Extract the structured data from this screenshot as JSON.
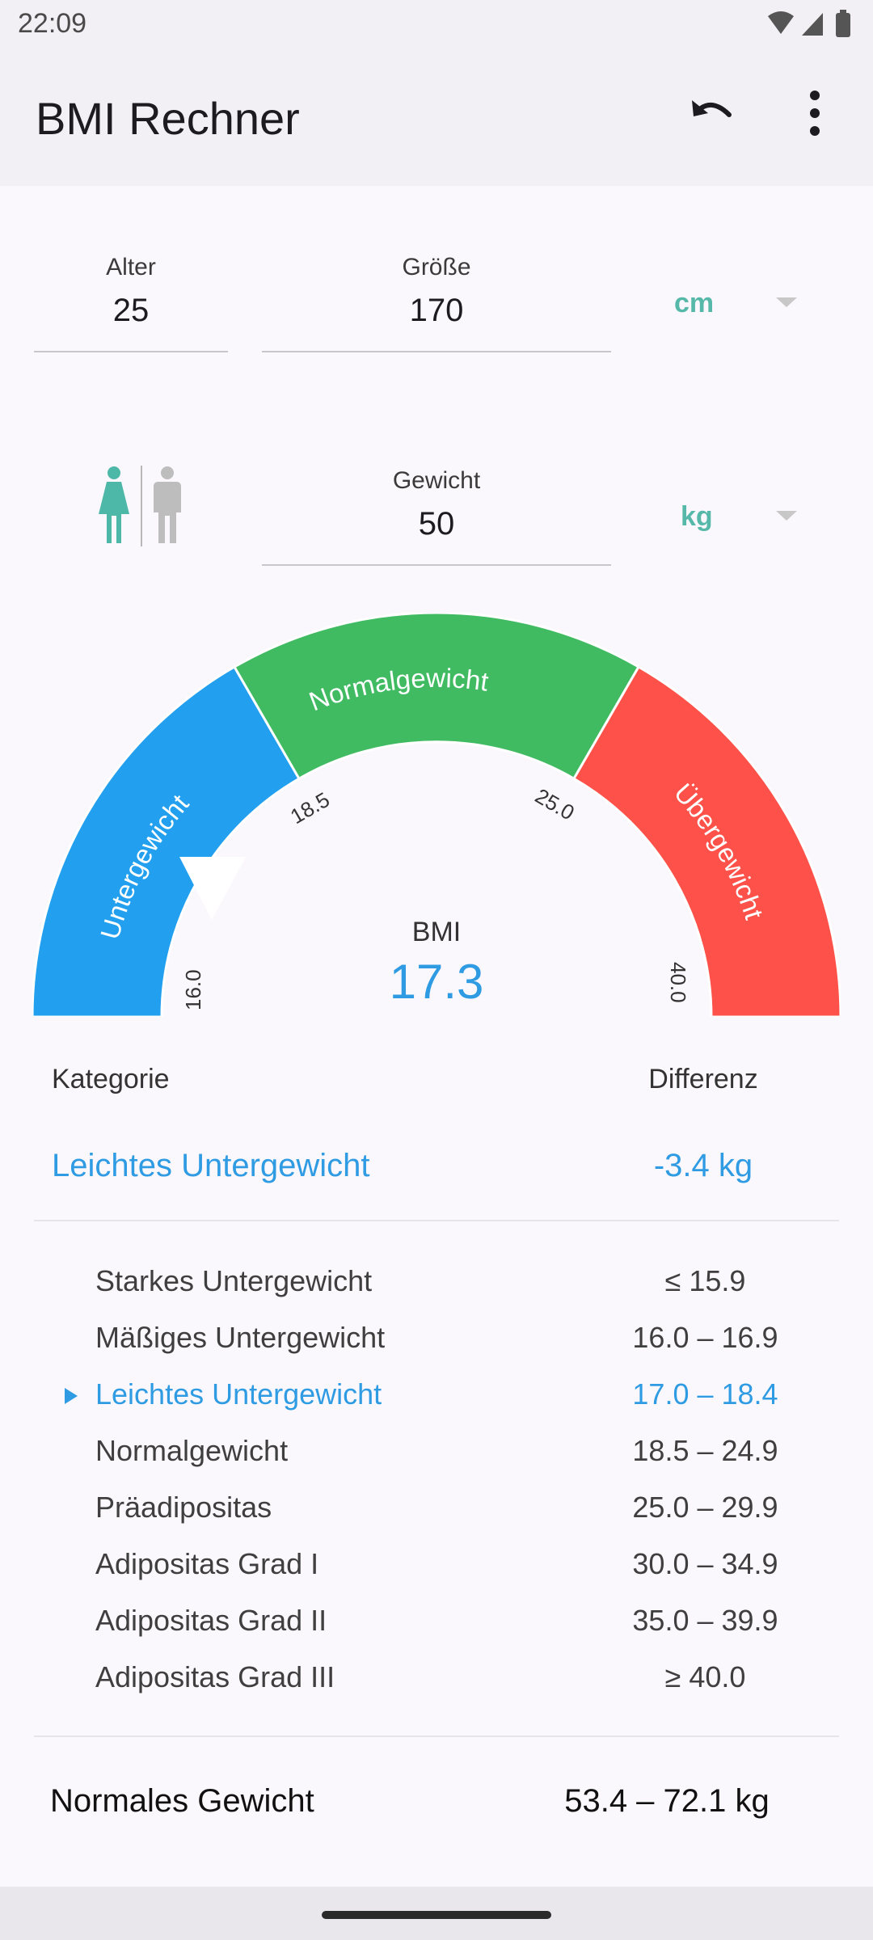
{
  "status": {
    "time": "22:09"
  },
  "app": {
    "title": "BMI Rechner",
    "undo_icon": "undo-icon",
    "menu_icon": "more-vert-icon"
  },
  "inputs": {
    "age": {
      "label": "Alter",
      "value": "25"
    },
    "height": {
      "label": "Größe",
      "value": "170",
      "unit": "cm"
    },
    "weight": {
      "label": "Gewicht",
      "value": "50",
      "unit": "kg"
    },
    "gender_selected": "female"
  },
  "gauge": {
    "segments": [
      "Untergewicht",
      "Normalgewicht",
      "Übergewicht"
    ],
    "ticks": [
      "16.0",
      "18.5",
      "25.0",
      "40.0"
    ],
    "colors": {
      "under": "#22a0ef",
      "normal": "#40bb62",
      "over": "#fd5149"
    },
    "bmi_label": "BMI",
    "bmi_value": "17.3"
  },
  "summary": {
    "category_header": "Kategorie",
    "difference_header": "Differenz",
    "category": "Leichtes Untergewicht",
    "difference": "-3.4 kg"
  },
  "table": [
    {
      "name": "Starkes Untergewicht",
      "range": "≤ 15.9"
    },
    {
      "name": "Mäßiges Untergewicht",
      "range": "16.0 – 16.9"
    },
    {
      "name": "Leichtes Untergewicht",
      "range": "17.0 – 18.4",
      "active": true
    },
    {
      "name": "Normalgewicht",
      "range": "18.5 – 24.9"
    },
    {
      "name": "Präadipositas",
      "range": "25.0 – 29.9"
    },
    {
      "name": "Adipositas Grad I",
      "range": "30.0 – 34.9"
    },
    {
      "name": "Adipositas Grad II",
      "range": "35.0 – 39.9"
    },
    {
      "name": "Adipositas Grad III",
      "range": "≥ 40.0"
    }
  ],
  "normal_weight": {
    "label": "Normales Gewicht",
    "value": "53.4 – 72.1 kg"
  }
}
